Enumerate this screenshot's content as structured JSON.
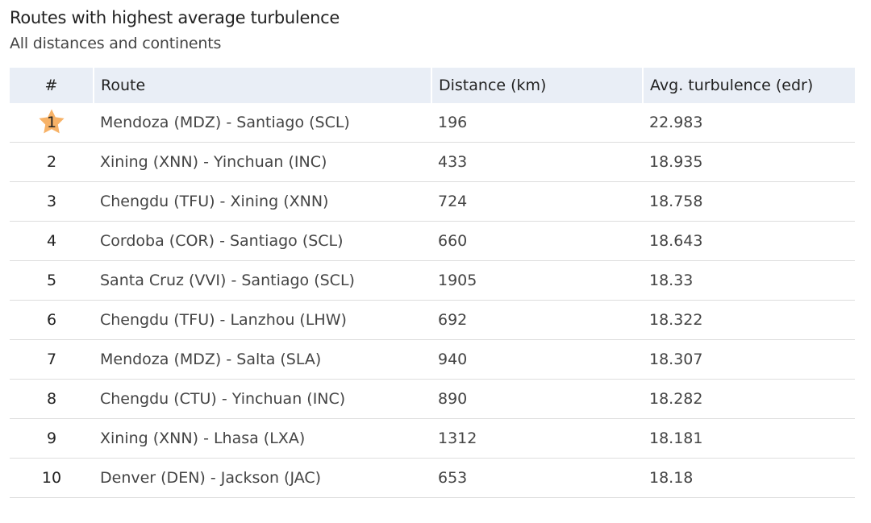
{
  "chart_data": {
    "type": "table",
    "title": "Routes with highest average turbulence",
    "subtitle": "All distances and continents",
    "columns": [
      "#",
      "Route",
      "Distance (km)",
      "Avg. turbulence (edr)"
    ],
    "rows": [
      {
        "rank": "1",
        "route": "Mendoza (MDZ) - Santiago (SCL)",
        "distance": "196",
        "turbulence": "22.983"
      },
      {
        "rank": "2",
        "route": "Xining (XNN) - Yinchuan (INC)",
        "distance": "433",
        "turbulence": "18.935"
      },
      {
        "rank": "3",
        "route": "Chengdu (TFU) - Xining (XNN)",
        "distance": "724",
        "turbulence": "18.758"
      },
      {
        "rank": "4",
        "route": "Cordoba (COR) - Santiago (SCL)",
        "distance": "660",
        "turbulence": "18.643"
      },
      {
        "rank": "5",
        "route": "Santa Cruz (VVI) - Santiago (SCL)",
        "distance": "1905",
        "turbulence": "18.33"
      },
      {
        "rank": "6",
        "route": "Chengdu (TFU) - Lanzhou (LHW)",
        "distance": "692",
        "turbulence": "18.322"
      },
      {
        "rank": "7",
        "route": "Mendoza (MDZ) - Salta (SLA)",
        "distance": "940",
        "turbulence": "18.307"
      },
      {
        "rank": "8",
        "route": "Chengdu (CTU) - Yinchuan (INC)",
        "distance": "890",
        "turbulence": "18.282"
      },
      {
        "rank": "9",
        "route": "Xining (XNN) - Lhasa (LXA)",
        "distance": "1312",
        "turbulence": "18.181"
      },
      {
        "rank": "10",
        "route": "Denver (DEN) - Jackson (JAC)",
        "distance": "653",
        "turbulence": "18.18"
      }
    ],
    "highlight": {
      "rank": "1",
      "icon": "star-icon",
      "color": "#f7b267"
    },
    "header_background": "#e9eef6"
  }
}
